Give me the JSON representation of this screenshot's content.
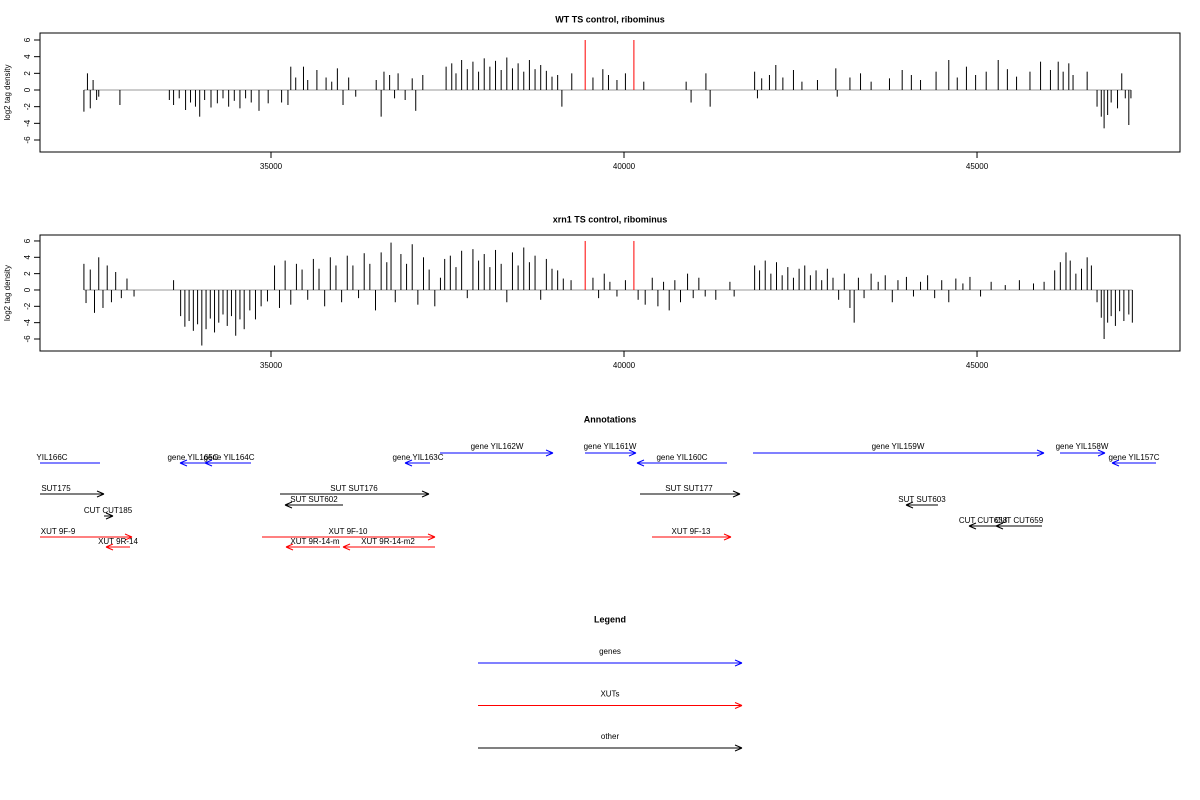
{
  "chart_data": [
    {
      "type": "spike",
      "title": "WT TS control, ribominus",
      "ylabel": "log2 tag density",
      "xlim": [
        31728,
        47875
      ],
      "xticks": [
        35000,
        40000,
        45000
      ],
      "ylim": [
        -7.44,
        6.84
      ],
      "yticks": [
        -6,
        -4,
        -2,
        0,
        2,
        4,
        6
      ],
      "series": [
        {
          "color": "#000000",
          "x": [
            32350,
            32400,
            32440,
            32480,
            32530,
            32560,
            32860,
            33560,
            33620,
            33700,
            33790,
            33860,
            33930,
            33990,
            34060,
            34150,
            34240,
            34320,
            34400,
            34480,
            34560,
            34640,
            34720,
            34830,
            34960,
            35150,
            35240,
            35280,
            35350,
            35460,
            35520,
            35650,
            35780,
            35860,
            35940,
            36020,
            36100,
            36200,
            36490,
            36560,
            36600,
            36680,
            36750,
            36800,
            36900,
            37000,
            37050,
            37150,
            37480,
            37560,
            37620,
            37700,
            37780,
            37860,
            37940,
            38020,
            38100,
            38180,
            38260,
            38340,
            38420,
            38500,
            38580,
            38660,
            38740,
            38820,
            38900,
            38980,
            39060,
            39120,
            39260,
            39560,
            39700,
            39780,
            39900,
            40020,
            40280,
            40880,
            40950,
            41160,
            41220,
            41850,
            41890,
            41950,
            42060,
            42150,
            42250,
            42400,
            42520,
            42740,
            43000,
            43020,
            43200,
            43350,
            43500,
            43760,
            43940,
            44070,
            44200,
            44420,
            44600,
            44720,
            44850,
            44980,
            45130,
            45300,
            45430,
            45560,
            45750,
            45900,
            46040,
            46150,
            46220,
            46300,
            46360,
            46560,
            46700,
            46760,
            46800,
            46850,
            46900,
            46990,
            47050,
            47100,
            47150,
            47180
          ],
          "values": [
            -2.6,
            2,
            -2.2,
            1.2,
            -1.2,
            -0.8,
            -1.8,
            -1.2,
            -1.8,
            -1,
            -2.4,
            -1.5,
            -2,
            -3.2,
            -1.2,
            -2.1,
            -1.6,
            -1,
            -2,
            -1.3,
            -2.2,
            -1,
            -1.5,
            -2.5,
            -1.6,
            -1.5,
            -1.8,
            2.8,
            1.5,
            2.8,
            1.2,
            2.4,
            1.5,
            1,
            2.6,
            -1.8,
            1.5,
            -0.8,
            1.2,
            -3.2,
            2.2,
            1.8,
            -1,
            2,
            -1.2,
            1.4,
            -2.5,
            1.8,
            2.8,
            3.2,
            2,
            3.6,
            2.5,
            3.4,
            2.2,
            3.8,
            2.8,
            3.5,
            2.4,
            3.9,
            2.6,
            3.2,
            2.2,
            3.6,
            2.5,
            3,
            2.3,
            1.6,
            1.8,
            -2,
            2,
            1.5,
            2.5,
            1.8,
            1.2,
            2,
            1,
            1,
            -1.5,
            2,
            -2,
            2.2,
            -1,
            1.4,
            1.8,
            3,
            1.5,
            2.4,
            1,
            1.2,
            2.6,
            -0.8,
            1.5,
            2,
            1,
            1.4,
            2.4,
            1.8,
            1.2,
            2.2,
            3.6,
            1.5,
            2.8,
            1.8,
            2.2,
            3.6,
            2.5,
            1.6,
            2.2,
            3.4,
            2.4,
            3.4,
            2.2,
            3.2,
            1.8,
            2.2,
            -2,
            -3.2,
            -4.6,
            -3,
            -1.5,
            -2.2,
            2,
            -1,
            -4.2,
            -1
          ]
        },
        {
          "color": "#ff0000",
          "x": [
            39450,
            40140
          ],
          "values": [
            6,
            6
          ]
        }
      ]
    },
    {
      "type": "spike",
      "title": "xrn1 TS control, ribominus",
      "ylabel": "log2 tag density",
      "xlim": [
        31728,
        47875
      ],
      "xticks": [
        35000,
        40000,
        45000
      ],
      "ylim": [
        -7.47,
        6.73
      ],
      "yticks": [
        -6,
        -4,
        -2,
        0,
        2,
        4,
        6
      ],
      "series": [
        {
          "color": "#000000",
          "x": [
            32350,
            32380,
            32440,
            32500,
            32560,
            32620,
            32680,
            32740,
            32800,
            32880,
            32960,
            33060,
            33620,
            33720,
            33780,
            33840,
            33900,
            33960,
            34020,
            34080,
            34140,
            34200,
            34260,
            34320,
            34380,
            34440,
            34500,
            34560,
            34620,
            34700,
            34780,
            34860,
            34950,
            35050,
            35120,
            35200,
            35280,
            35360,
            35440,
            35520,
            35600,
            35680,
            35760,
            35840,
            35920,
            36000,
            36080,
            36160,
            36240,
            36320,
            36400,
            36480,
            36560,
            36640,
            36700,
            36760,
            36840,
            36920,
            37000,
            37080,
            37160,
            37240,
            37320,
            37400,
            37460,
            37540,
            37620,
            37700,
            37780,
            37860,
            37940,
            38020,
            38100,
            38180,
            38260,
            38340,
            38420,
            38500,
            38580,
            38660,
            38740,
            38820,
            38900,
            38980,
            39060,
            39140,
            39250,
            39560,
            39640,
            39720,
            39800,
            39900,
            40020,
            40200,
            40300,
            40400,
            40480,
            40560,
            40640,
            40720,
            40800,
            40900,
            40980,
            41060,
            41150,
            41300,
            41500,
            41560,
            41850,
            41920,
            42000,
            42080,
            42160,
            42240,
            42320,
            42400,
            42480,
            42560,
            42640,
            42720,
            42800,
            42880,
            42960,
            43040,
            43120,
            43200,
            43260,
            43320,
            43400,
            43500,
            43600,
            43700,
            43800,
            43880,
            44000,
            44100,
            44200,
            44300,
            44400,
            44500,
            44600,
            44700,
            44800,
            44900,
            45050,
            45200,
            45400,
            45600,
            45800,
            45950,
            46100,
            46180,
            46260,
            46320,
            46400,
            46480,
            46560,
            46620,
            46700,
            46760,
            46800,
            46850,
            46900,
            46960,
            47020,
            47080,
            47150,
            47200
          ],
          "values": [
            3.2,
            -1.6,
            2.5,
            -2.8,
            4,
            -2.2,
            3,
            -1.5,
            2.2,
            -1,
            1.4,
            -0.8,
            1.2,
            -3.2,
            -4.5,
            -3.8,
            -5,
            -4.2,
            -6.8,
            -4.8,
            -3.5,
            -5.2,
            -4,
            -3,
            -4.4,
            -3.2,
            -5.6,
            -3.6,
            -4.8,
            -2.5,
            -3.6,
            -2,
            -1.4,
            3,
            -2.2,
            3.6,
            -1.8,
            3.2,
            2.5,
            -1.2,
            3.8,
            2.6,
            -2,
            4,
            3,
            -1.5,
            4.2,
            3,
            -1,
            4.5,
            3.2,
            -2.5,
            4.6,
            3.4,
            5.8,
            -1.5,
            4.4,
            3.2,
            5.6,
            -1.8,
            4,
            2.5,
            -2,
            1.5,
            3.8,
            4.2,
            2.8,
            4.8,
            -1,
            5,
            3.6,
            4.4,
            2.8,
            4.9,
            3.2,
            -1.5,
            4.6,
            3,
            5.2,
            3.4,
            4.2,
            -1.2,
            3.8,
            2.6,
            2.4,
            1.4,
            1.2,
            1.5,
            -1,
            2,
            1,
            -0.8,
            1.2,
            -1.2,
            -1.8,
            1.5,
            -2,
            1,
            -2.5,
            1.2,
            -1.5,
            2,
            -1,
            1.5,
            -0.8,
            -1.2,
            1,
            -0.8,
            3,
            2.4,
            3.6,
            2,
            3.4,
            1.8,
            2.8,
            1.5,
            2.6,
            3,
            1.8,
            2.4,
            1.2,
            2.6,
            1.5,
            -1.2,
            2,
            -2.2,
            -4,
            1.5,
            -1,
            2,
            1,
            1.8,
            -1.5,
            1.2,
            1.6,
            -0.8,
            1,
            1.8,
            -1,
            1.2,
            -1.5,
            1.4,
            0.8,
            1.6,
            -0.8,
            1,
            0.6,
            1.2,
            0.8,
            1,
            2.4,
            3.4,
            4.6,
            3.6,
            2,
            2.6,
            4,
            3,
            -1.5,
            -3.4,
            -6,
            -4,
            -3.2,
            -4.4,
            -2.6,
            -3.8,
            -3,
            -4
          ]
        },
        {
          "color": "#ff0000",
          "x": [
            39450,
            40140
          ],
          "values": [
            6,
            6
          ]
        }
      ]
    }
  ],
  "annotations": {
    "title": "Annotations",
    "features": [
      {
        "label": "YIL166C",
        "color": "#0000ff"
      },
      {
        "label": "gene YIL165C",
        "color": "#0000ff"
      },
      {
        "label": "gene YIL164C",
        "color": "#0000ff"
      },
      {
        "label": "gene YIL163C",
        "color": "#0000ff"
      },
      {
        "label": "gene YIL162W",
        "color": "#0000ff"
      },
      {
        "label": "gene YIL161W",
        "color": "#0000ff"
      },
      {
        "label": "gene YIL160C",
        "color": "#0000ff"
      },
      {
        "label": "gene YIL159W",
        "color": "#0000ff"
      },
      {
        "label": "gene YIL158W",
        "color": "#0000ff"
      },
      {
        "label": "gene YIL157C",
        "color": "#0000ff"
      },
      {
        "label": "SUT175",
        "color": "#000000"
      },
      {
        "label": "CUT CUT185",
        "color": "#000000"
      },
      {
        "label": "SUT SUT176",
        "color": "#000000"
      },
      {
        "label": "SUT SUT602",
        "color": "#000000"
      },
      {
        "label": "SUT SUT177",
        "color": "#000000"
      },
      {
        "label": "SUT SUT603",
        "color": "#000000"
      },
      {
        "label": "CUT CUT658",
        "color": "#000000"
      },
      {
        "label": "CUT CUT659",
        "color": "#000000"
      },
      {
        "label": "XUT 9F-9",
        "color": "#ff0000"
      },
      {
        "label": "XUT 9R-14",
        "color": "#ff0000"
      },
      {
        "label": "XUT 9F-10",
        "color": "#ff0000"
      },
      {
        "label": "XUT 9R-14-m",
        "color": "#ff0000"
      },
      {
        "label": "XUT 9R-14-m2",
        "color": "#ff0000"
      },
      {
        "label": "XUT 9F-13",
        "color": "#ff0000"
      }
    ]
  },
  "legend": {
    "title": "Legend",
    "items": [
      {
        "label": "genes",
        "color": "#0000ff"
      },
      {
        "label": "XUTs",
        "color": "#ff0000"
      },
      {
        "label": "other",
        "color": "#000000"
      }
    ]
  }
}
